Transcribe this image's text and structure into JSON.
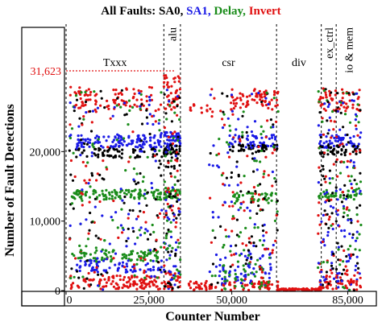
{
  "chart_data": {
    "type": "scatter",
    "title_prefix": "All Faults:",
    "legend": [
      {
        "name": "SA0",
        "color": "#000000"
      },
      {
        "name": "SA1",
        "color": "#1a1ae6"
      },
      {
        "name": "Delay",
        "color": "#1a8c1a"
      },
      {
        "name": "Invert",
        "color": "#e01010"
      }
    ],
    "xlabel": "Counter Number",
    "ylabel": "Number of Fault Detections",
    "xlim": [
      0,
      89000
    ],
    "ylim": [
      0,
      31623
    ],
    "x_ticks": [
      {
        "value": 0,
        "label": "0"
      },
      {
        "value": 25000,
        "label": "25,000"
      },
      {
        "value": 50000,
        "label": "50,000"
      },
      {
        "value": 85000,
        "label": "85,000"
      }
    ],
    "y_ticks": [
      {
        "value": 0,
        "label": "0"
      },
      {
        "value": 10000,
        "label": "10,000"
      },
      {
        "value": 20000,
        "label": "20,000"
      }
    ],
    "max_line": {
      "value": 31623,
      "label": "31,623"
    },
    "regions": [
      {
        "label": "Txxx",
        "start": 0,
        "end": 29500,
        "vertical": false
      },
      {
        "label": "alu",
        "start": 29500,
        "end": 34500,
        "vertical": true
      },
      {
        "label": "csr",
        "start": 34500,
        "end": 63500,
        "vertical": false
      },
      {
        "label": "div",
        "start": 63500,
        "end": 77000,
        "vertical": false
      },
      {
        "label": "ex_ctrl",
        "start": 77000,
        "end": 81500,
        "vertical": true
      },
      {
        "label": "io & mem",
        "start": 81500,
        "end": 89000,
        "vertical": true
      }
    ],
    "bands": [
      {
        "series": "Invert",
        "x0": 1000,
        "x1": 29000,
        "y": 27500,
        "spread": 1800,
        "density": 0.45
      },
      {
        "series": "Invert",
        "x0": 29500,
        "x1": 34500,
        "y": 28500,
        "spread": 2500,
        "density": 1.0
      },
      {
        "series": "Invert",
        "x0": 37000,
        "x1": 43000,
        "y": 27000,
        "spread": 1500,
        "density": 0.25
      },
      {
        "series": "Invert",
        "x0": 49000,
        "x1": 64000,
        "y": 27500,
        "spread": 1500,
        "density": 0.45
      },
      {
        "series": "Invert",
        "x0": 76000,
        "x1": 89000,
        "y": 27500,
        "spread": 1800,
        "density": 0.55
      },
      {
        "series": "SA1",
        "x0": 1000,
        "x1": 29000,
        "y": 21500,
        "spread": 900,
        "density": 0.55
      },
      {
        "series": "SA1",
        "x0": 29500,
        "x1": 34500,
        "y": 21800,
        "spread": 1000,
        "density": 0.8
      },
      {
        "series": "SA1",
        "x0": 49000,
        "x1": 64000,
        "y": 21500,
        "spread": 900,
        "density": 0.45
      },
      {
        "series": "SA1",
        "x0": 76000,
        "x1": 89000,
        "y": 21500,
        "spread": 1000,
        "density": 0.45
      },
      {
        "series": "SA0",
        "x0": 1000,
        "x1": 29000,
        "y": 19800,
        "spread": 700,
        "density": 0.35
      },
      {
        "series": "SA0",
        "x0": 29500,
        "x1": 34500,
        "y": 20300,
        "spread": 700,
        "density": 0.7
      },
      {
        "series": "SA0",
        "x0": 49000,
        "x1": 64000,
        "y": 20500,
        "spread": 500,
        "density": 0.35
      },
      {
        "series": "SA0",
        "x0": 76000,
        "x1": 89000,
        "y": 20200,
        "spread": 700,
        "density": 0.45
      },
      {
        "series": "Delay",
        "x0": 1000,
        "x1": 29000,
        "y": 13800,
        "spread": 700,
        "density": 0.45
      },
      {
        "series": "Delay",
        "x0": 29500,
        "x1": 34500,
        "y": 14000,
        "spread": 800,
        "density": 0.7
      },
      {
        "series": "Delay",
        "x0": 49000,
        "x1": 64000,
        "y": 13500,
        "spread": 600,
        "density": 0.35
      },
      {
        "series": "Delay",
        "x0": 76000,
        "x1": 89000,
        "y": 13800,
        "spread": 700,
        "density": 0.4
      },
      {
        "series": "Delay",
        "x0": 1000,
        "x1": 29000,
        "y": 5000,
        "spread": 800,
        "density": 0.4
      },
      {
        "series": "SA1",
        "x0": 1000,
        "x1": 29000,
        "y": 3500,
        "spread": 900,
        "density": 0.35
      },
      {
        "series": "Invert",
        "x0": 1000,
        "x1": 29000,
        "y": 1200,
        "spread": 1000,
        "density": 0.55
      },
      {
        "series": "Invert",
        "x0": 29500,
        "x1": 34500,
        "y": 1500,
        "spread": 1500,
        "density": 0.6
      },
      {
        "series": "Invert",
        "x0": 37000,
        "x1": 64000,
        "y": 700,
        "spread": 700,
        "density": 0.35
      },
      {
        "series": "SA1",
        "x0": 45000,
        "x1": 63000,
        "y": 3000,
        "spread": 2500,
        "density": 0.3
      },
      {
        "series": "Delay",
        "x0": 45000,
        "x1": 63000,
        "y": 2000,
        "spread": 1800,
        "density": 0.25
      },
      {
        "series": "Invert",
        "x0": 64000,
        "x1": 77000,
        "y": 150,
        "spread": 150,
        "density": 0.7
      },
      {
        "series": "Invert",
        "x0": 76000,
        "x1": 89000,
        "y": 1500,
        "spread": 1500,
        "density": 0.45
      },
      {
        "series": "SA1",
        "x0": 76000,
        "x1": 89000,
        "y": 5000,
        "spread": 4000,
        "density": 0.3
      }
    ],
    "scatter_columns": [
      {
        "x0": 1000,
        "x1": 29000,
        "count": 300
      },
      {
        "x0": 29500,
        "x1": 34500,
        "count": 160
      },
      {
        "x0": 43000,
        "x1": 64000,
        "count": 260
      },
      {
        "x0": 76000,
        "x1": 89000,
        "count": 280
      }
    ]
  }
}
